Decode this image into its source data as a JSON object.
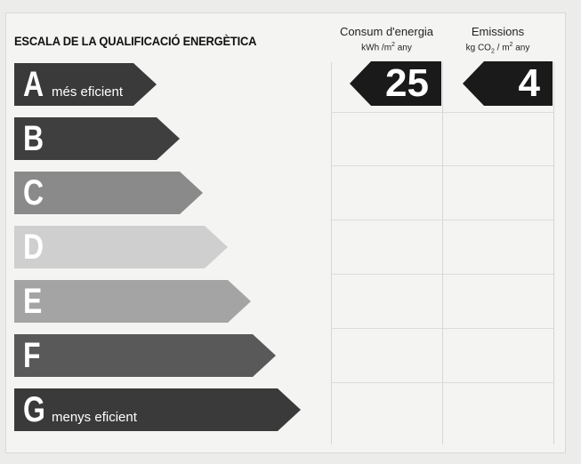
{
  "title": "ESCALA DE LA QUALIFICACIÓ ENERGÈTICA",
  "columns": {
    "consum": {
      "label": "Consum d'energia",
      "unit_pre": "kWh /m",
      "unit_sup": "2",
      "unit_post": " any"
    },
    "emissions": {
      "label": "Emissions",
      "unit_pre": "kg CO",
      "unit_sub": "2",
      "unit_mid": " / m",
      "unit_sup": "2",
      "unit_post": " any"
    }
  },
  "grades": [
    {
      "letter": "A",
      "label": "més eficient",
      "color": "#3a3a3a"
    },
    {
      "letter": "B",
      "label": "",
      "color": "#3f3f3f"
    },
    {
      "letter": "C",
      "label": "",
      "color": "#8a8a8a"
    },
    {
      "letter": "D",
      "label": "",
      "color": "#cfcfcf"
    },
    {
      "letter": "E",
      "label": "",
      "color": "#a4a4a4"
    },
    {
      "letter": "F",
      "label": "",
      "color": "#595959"
    },
    {
      "letter": "G",
      "label": "menys eficient",
      "color": "#3a3a3a"
    }
  ],
  "rating": {
    "grade": "A",
    "consum_value": "25",
    "emissions_value": "4"
  }
}
